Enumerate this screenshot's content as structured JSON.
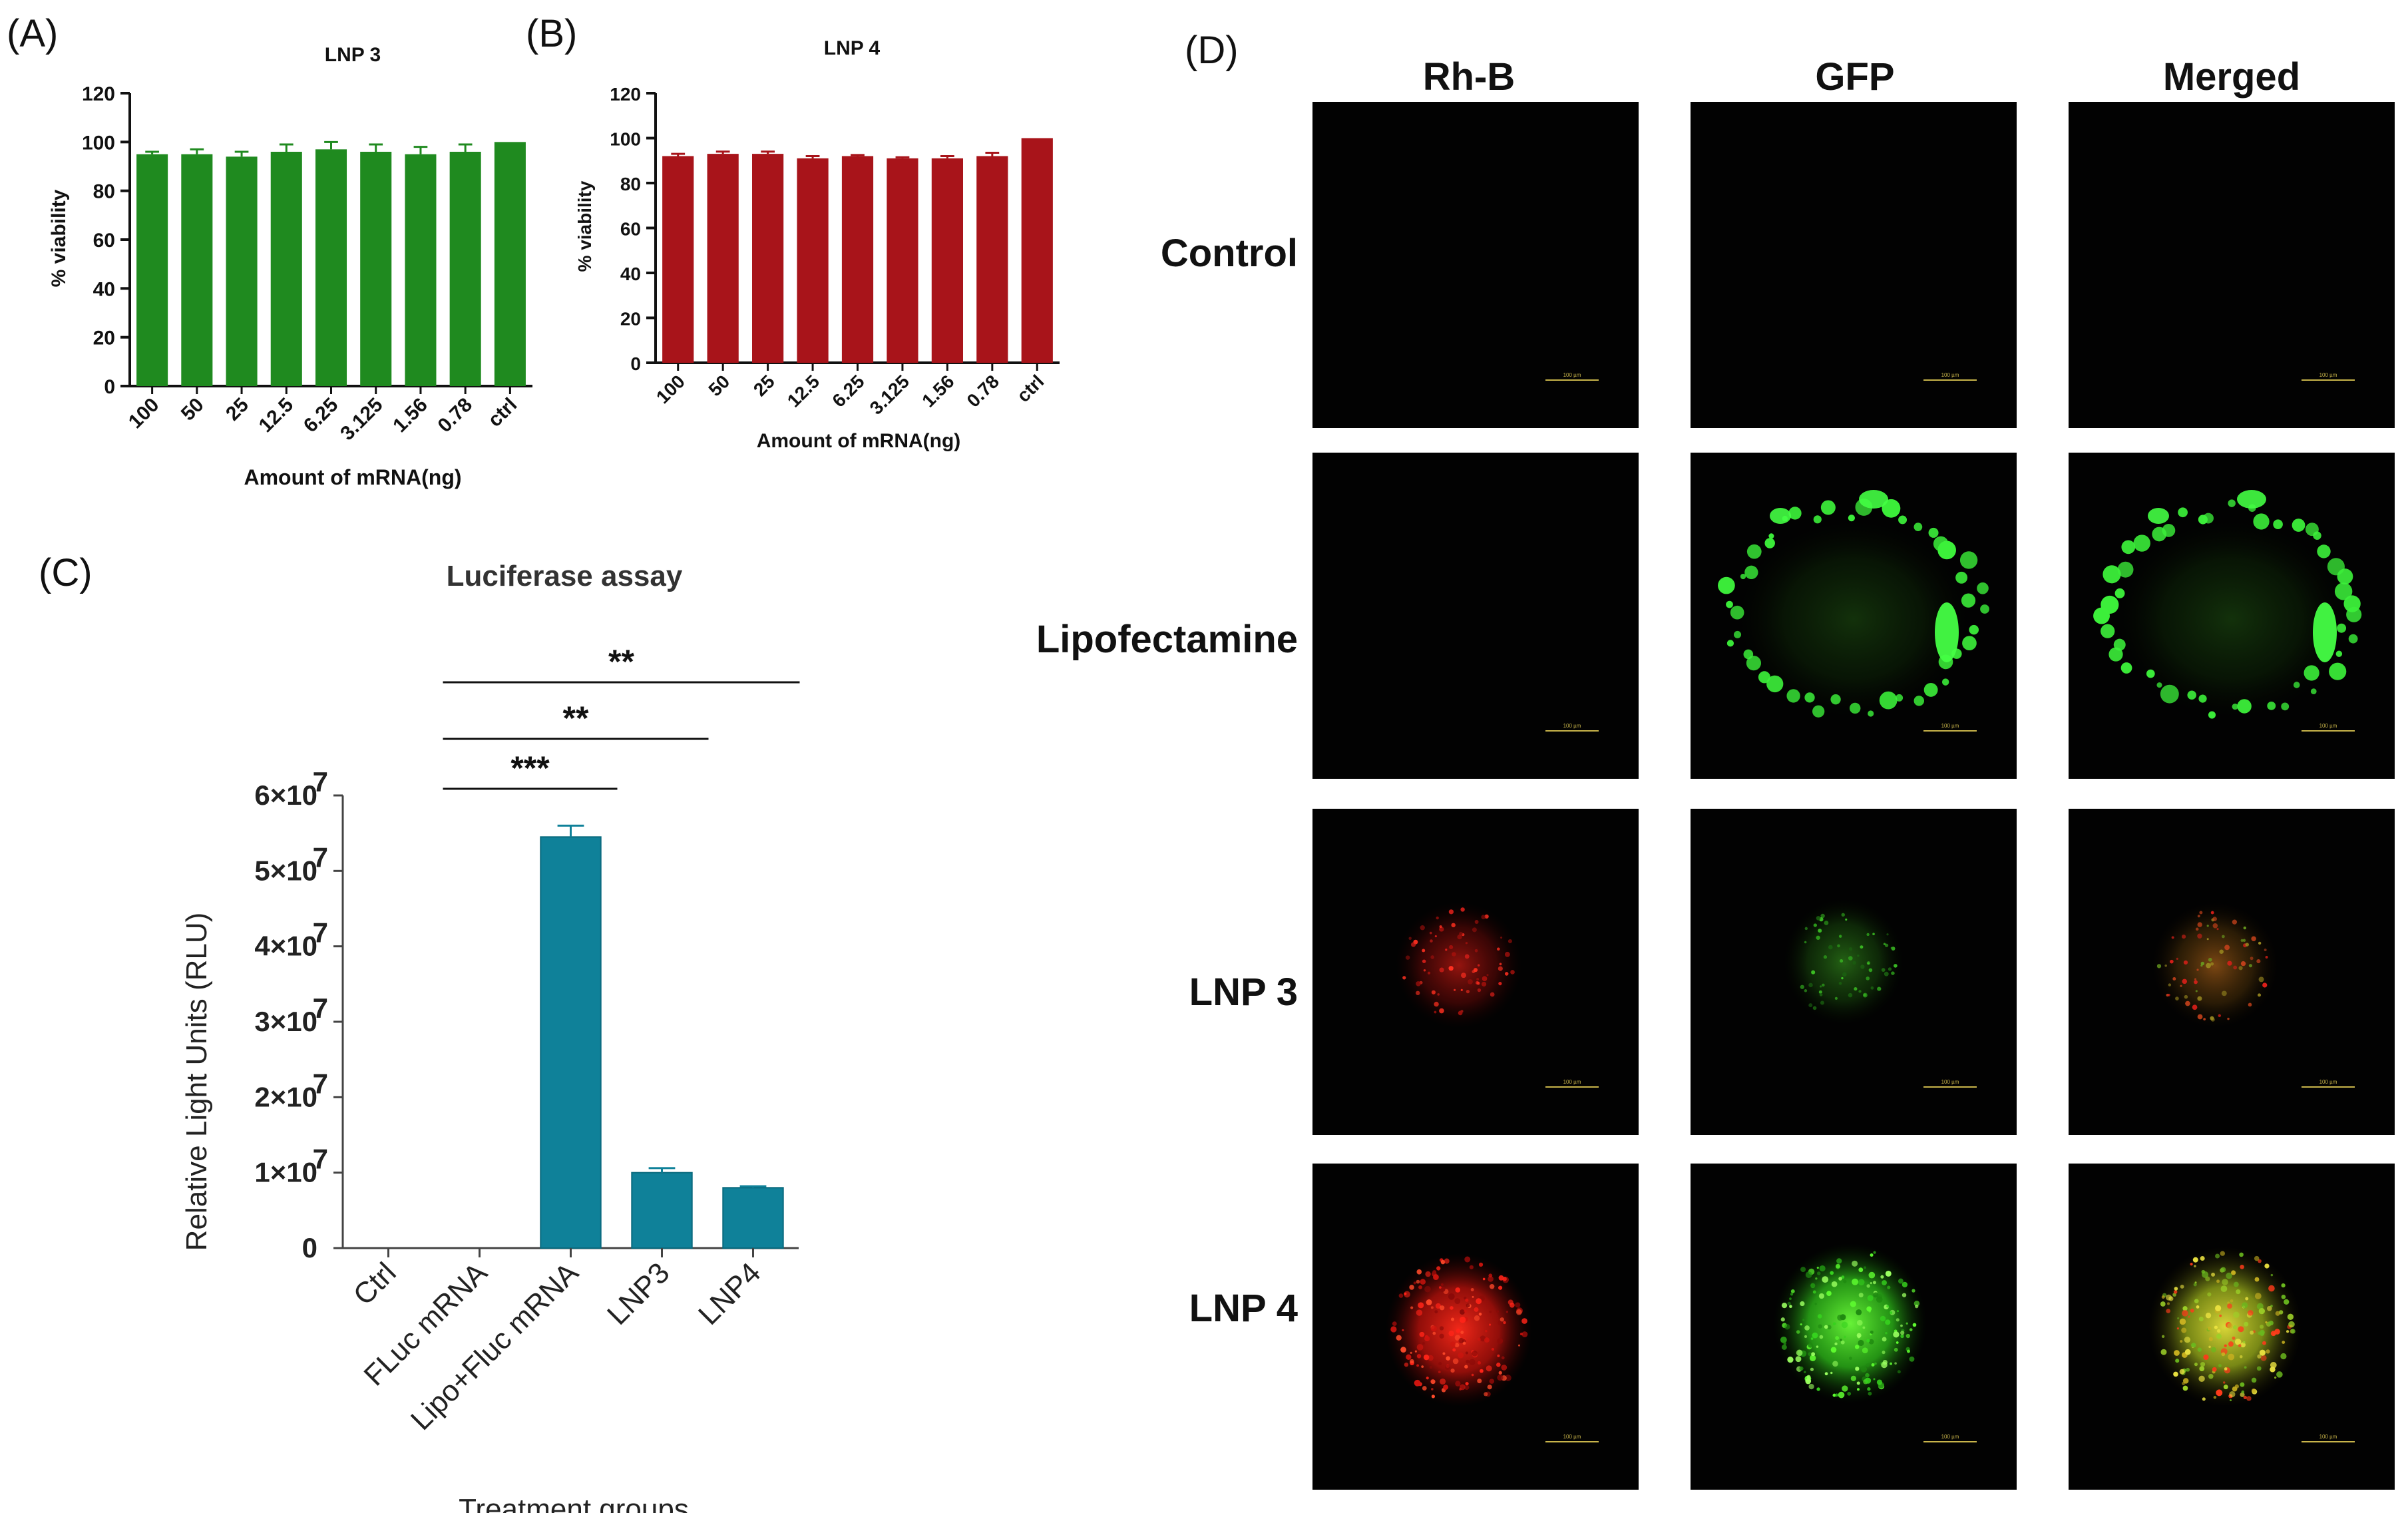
{
  "panels": {
    "a": "(A)",
    "b": "(B)",
    "c": "(C)",
    "d": "(D)"
  },
  "chart_data": [
    {
      "type": "bar",
      "title": "LNP 3",
      "xlabel": "Amount of mRNA(ng)",
      "ylabel": "% viability",
      "categories": [
        "100",
        "50",
        "25",
        "12.5",
        "6.25",
        "3.125",
        "1.56",
        "0.78",
        "ctrl"
      ],
      "values": [
        95,
        95,
        94,
        96,
        97,
        96,
        95,
        96,
        100
      ],
      "errors": [
        1,
        2,
        2,
        3,
        3,
        3,
        3,
        3,
        0
      ],
      "ylim": [
        0,
        120
      ],
      "yticks": [
        "0",
        "20",
        "40",
        "60",
        "80",
        "100",
        "120"
      ],
      "color": "#1f8a1f",
      "grid": false
    },
    {
      "type": "bar",
      "title": "LNP 4",
      "xlabel": "Amount of mRNA(ng)",
      "ylabel": "% viability",
      "categories": [
        "100",
        "50",
        "25",
        "12.5",
        "6.25",
        "3.125",
        "1.56",
        "0.78",
        "ctrl"
      ],
      "values": [
        92,
        93,
        93,
        91,
        92,
        91,
        91,
        92,
        100
      ],
      "errors": [
        1,
        1,
        1,
        1,
        0.5,
        0.5,
        1,
        1.5,
        0
      ],
      "ylim": [
        0,
        120
      ],
      "yticks": [
        "0",
        "20",
        "40",
        "60",
        "80",
        "100",
        "120"
      ],
      "color": "#a8141a",
      "grid": false
    },
    {
      "type": "bar",
      "title": "Luciferase assay",
      "xlabel": "Treatment groups",
      "ylabel": "Relative Light  Units (RLU)",
      "categories": [
        "Ctrl",
        "FLuc mRNA",
        "Lipo+Fluc mRNA",
        "LNP3",
        "LNP4"
      ],
      "values": [
        0,
        0,
        54500000,
        10000000,
        8000000
      ],
      "errors": [
        0,
        0,
        1500000,
        600000,
        200000
      ],
      "ylim": [
        0,
        60000000
      ],
      "ytick_values": [
        0,
        10000000,
        20000000,
        30000000,
        40000000,
        50000000,
        60000000
      ],
      "ytick_coef": [
        "0",
        "1×10",
        "2×10",
        "3×10",
        "4×10",
        "5×10",
        "6×10"
      ],
      "ytick_exp": [
        "",
        "7",
        "7",
        "7",
        "7",
        "7",
        "7"
      ],
      "color": "#0f8199",
      "grid": false,
      "significance": [
        {
          "from": "FLuc mRNA",
          "to": "Lipo+Fluc mRNA",
          "label": "***"
        },
        {
          "from": "FLuc mRNA",
          "to": "LNP3",
          "label": "**"
        },
        {
          "from": "FLuc mRNA",
          "to": "LNP4",
          "label": "**"
        }
      ]
    }
  ],
  "microscopy": {
    "columns": [
      "Rh-B",
      "GFP",
      "Merged"
    ],
    "rows": [
      "Control",
      "Lipofectamine",
      "LNP 3",
      "LNP 4"
    ],
    "scale_bar": "100 µm"
  }
}
